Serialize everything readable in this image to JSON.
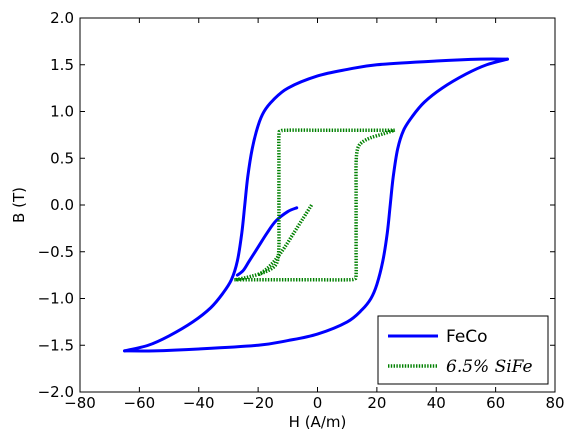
{
  "chart_data": {
    "type": "line",
    "xlabel": "H (A/m)",
    "ylabel": "B (T)",
    "xlim": [
      -80,
      80
    ],
    "ylim": [
      -2.0,
      2.0
    ],
    "xticks": [
      -80,
      -60,
      -40,
      -20,
      0,
      20,
      40,
      60,
      80
    ],
    "yticks": [
      -2.0,
      -1.5,
      -1.0,
      -0.5,
      0.0,
      0.5,
      1.0,
      1.5,
      2.0
    ],
    "xtick_labels": [
      "−80",
      "−60",
      "−40",
      "−20",
      "0",
      "20",
      "40",
      "60",
      "80"
    ],
    "ytick_labels": [
      "−2.0",
      "−1.5",
      "−1.0",
      "−0.5",
      "0.0",
      "0.5",
      "1.0",
      "1.5",
      "2.0"
    ],
    "grid": false,
    "legend_position": "bottom-right",
    "series": [
      {
        "name": "FeCo",
        "color": "#0000ff",
        "style": "solid",
        "curves": [
          {
            "role": "upper-branch",
            "points": [
              [
                64,
                1.56
              ],
              [
                55,
                1.56
              ],
              [
                40,
                1.54
              ],
              [
                20,
                1.5
              ],
              [
                10,
                1.45
              ],
              [
                0,
                1.38
              ],
              [
                -10,
                1.25
              ],
              [
                -15,
                1.12
              ],
              [
                -18,
                1.0
              ],
              [
                -20,
                0.85
              ],
              [
                -22,
                0.6
              ],
              [
                -23.5,
                0.3
              ],
              [
                -24.5,
                0.0
              ],
              [
                -25.5,
                -0.3
              ],
              [
                -27,
                -0.6
              ],
              [
                -29,
                -0.8
              ],
              [
                -32,
                -0.95
              ],
              [
                -36,
                -1.1
              ],
              [
                -42,
                -1.25
              ],
              [
                -50,
                -1.4
              ],
              [
                -57,
                -1.5
              ],
              [
                -65,
                -1.56
              ]
            ]
          },
          {
            "role": "lower-branch",
            "points": [
              [
                -65,
                -1.56
              ],
              [
                -55,
                -1.56
              ],
              [
                -40,
                -1.54
              ],
              [
                -20,
                -1.5
              ],
              [
                -10,
                -1.45
              ],
              [
                0,
                -1.38
              ],
              [
                10,
                -1.25
              ],
              [
                15,
                -1.12
              ],
              [
                18,
                -1.0
              ],
              [
                20,
                -0.85
              ],
              [
                22,
                -0.6
              ],
              [
                23.5,
                -0.3
              ],
              [
                24.5,
                0.0
              ],
              [
                25.5,
                0.3
              ],
              [
                27,
                0.6
              ],
              [
                29,
                0.8
              ],
              [
                32,
                0.95
              ],
              [
                36,
                1.1
              ],
              [
                42,
                1.25
              ],
              [
                50,
                1.4
              ],
              [
                57,
                1.5
              ],
              [
                64,
                1.56
              ]
            ]
          },
          {
            "role": "initial-curve",
            "points": [
              [
                -7,
                -0.03
              ],
              [
                -10,
                -0.07
              ],
              [
                -14,
                -0.17
              ],
              [
                -17,
                -0.3
              ],
              [
                -20,
                -0.45
              ],
              [
                -23,
                -0.6
              ],
              [
                -25,
                -0.7
              ],
              [
                -27,
                -0.75
              ]
            ]
          }
        ]
      },
      {
        "name": "6.5% SiFe",
        "color": "#008000",
        "style": "dotted",
        "curves": [
          {
            "role": "upper-branch",
            "points": [
              [
                26,
                0.8
              ],
              [
                20,
                0.8
              ],
              [
                0,
                0.8
              ],
              [
                -10,
                0.8
              ],
              [
                -12.5,
                0.79
              ],
              [
                -13,
                0.75
              ],
              [
                -13,
                0.5
              ],
              [
                -13,
                0.2
              ],
              [
                -13,
                0.0
              ],
              [
                -13,
                -0.2
              ],
              [
                -13,
                -0.45
              ],
              [
                -13.5,
                -0.6
              ],
              [
                -15,
                -0.67
              ],
              [
                -18,
                -0.72
              ],
              [
                -22,
                -0.76
              ],
              [
                -26,
                -0.79
              ],
              [
                -28,
                -0.8
              ]
            ]
          },
          {
            "role": "lower-branch",
            "points": [
              [
                -28,
                -0.8
              ],
              [
                -20,
                -0.8
              ],
              [
                0,
                -0.8
              ],
              [
                10,
                -0.8
              ],
              [
                12.5,
                -0.79
              ],
              [
                13,
                -0.75
              ],
              [
                13,
                -0.5
              ],
              [
                13,
                -0.2
              ],
              [
                13,
                0.0
              ],
              [
                13,
                0.2
              ],
              [
                13,
                0.45
              ],
              [
                13.5,
                0.6
              ],
              [
                15,
                0.67
              ],
              [
                18,
                0.72
              ],
              [
                22,
                0.76
              ],
              [
                26,
                0.8
              ]
            ]
          },
          {
            "role": "initial-curve",
            "points": [
              [
                -2,
                0.0
              ],
              [
                -5,
                -0.15
              ],
              [
                -8,
                -0.3
              ],
              [
                -11,
                -0.45
              ],
              [
                -14,
                -0.58
              ],
              [
                -17,
                -0.68
              ],
              [
                -20,
                -0.75
              ]
            ]
          }
        ]
      }
    ]
  }
}
